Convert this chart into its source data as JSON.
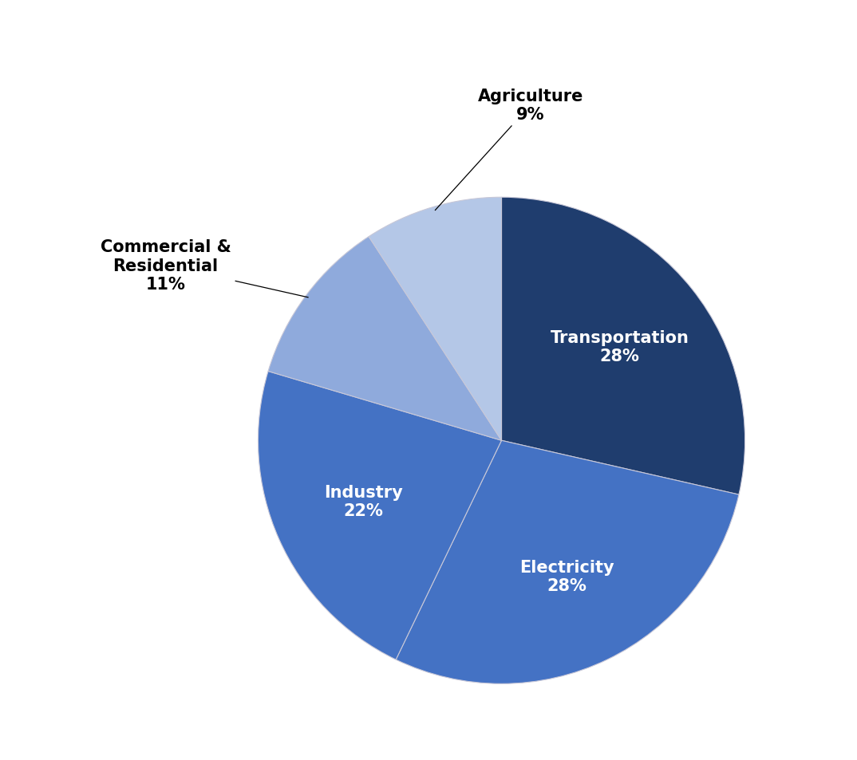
{
  "labels": [
    "Transportation",
    "Electricity",
    "Industry",
    "Commercial & Residential",
    "Agriculture"
  ],
  "values": [
    28,
    28,
    22,
    11,
    9
  ],
  "wedge_colors": [
    "#1f3d6e",
    "#4472c4",
    "#4472c4",
    "#8faadc",
    "#b4c7e7"
  ],
  "startangle": 90,
  "background_color": "#ffffff",
  "wedge_edge_color": "#c8c8d8",
  "internal_label_fontsize": 15,
  "external_label_fontsize": 15,
  "internal_items": [
    {
      "idx": 0,
      "text": "Transportation\n28%"
    },
    {
      "idx": 1,
      "text": "Electricity\n28%"
    },
    {
      "idx": 2,
      "text": "Industry\n22%"
    }
  ],
  "external_items": [
    {
      "idx": 3,
      "text": "Commercial &\nResidential\n11%",
      "ha": "right"
    },
    {
      "idx": 4,
      "text": "Agriculture\n9%",
      "ha": "center"
    }
  ]
}
